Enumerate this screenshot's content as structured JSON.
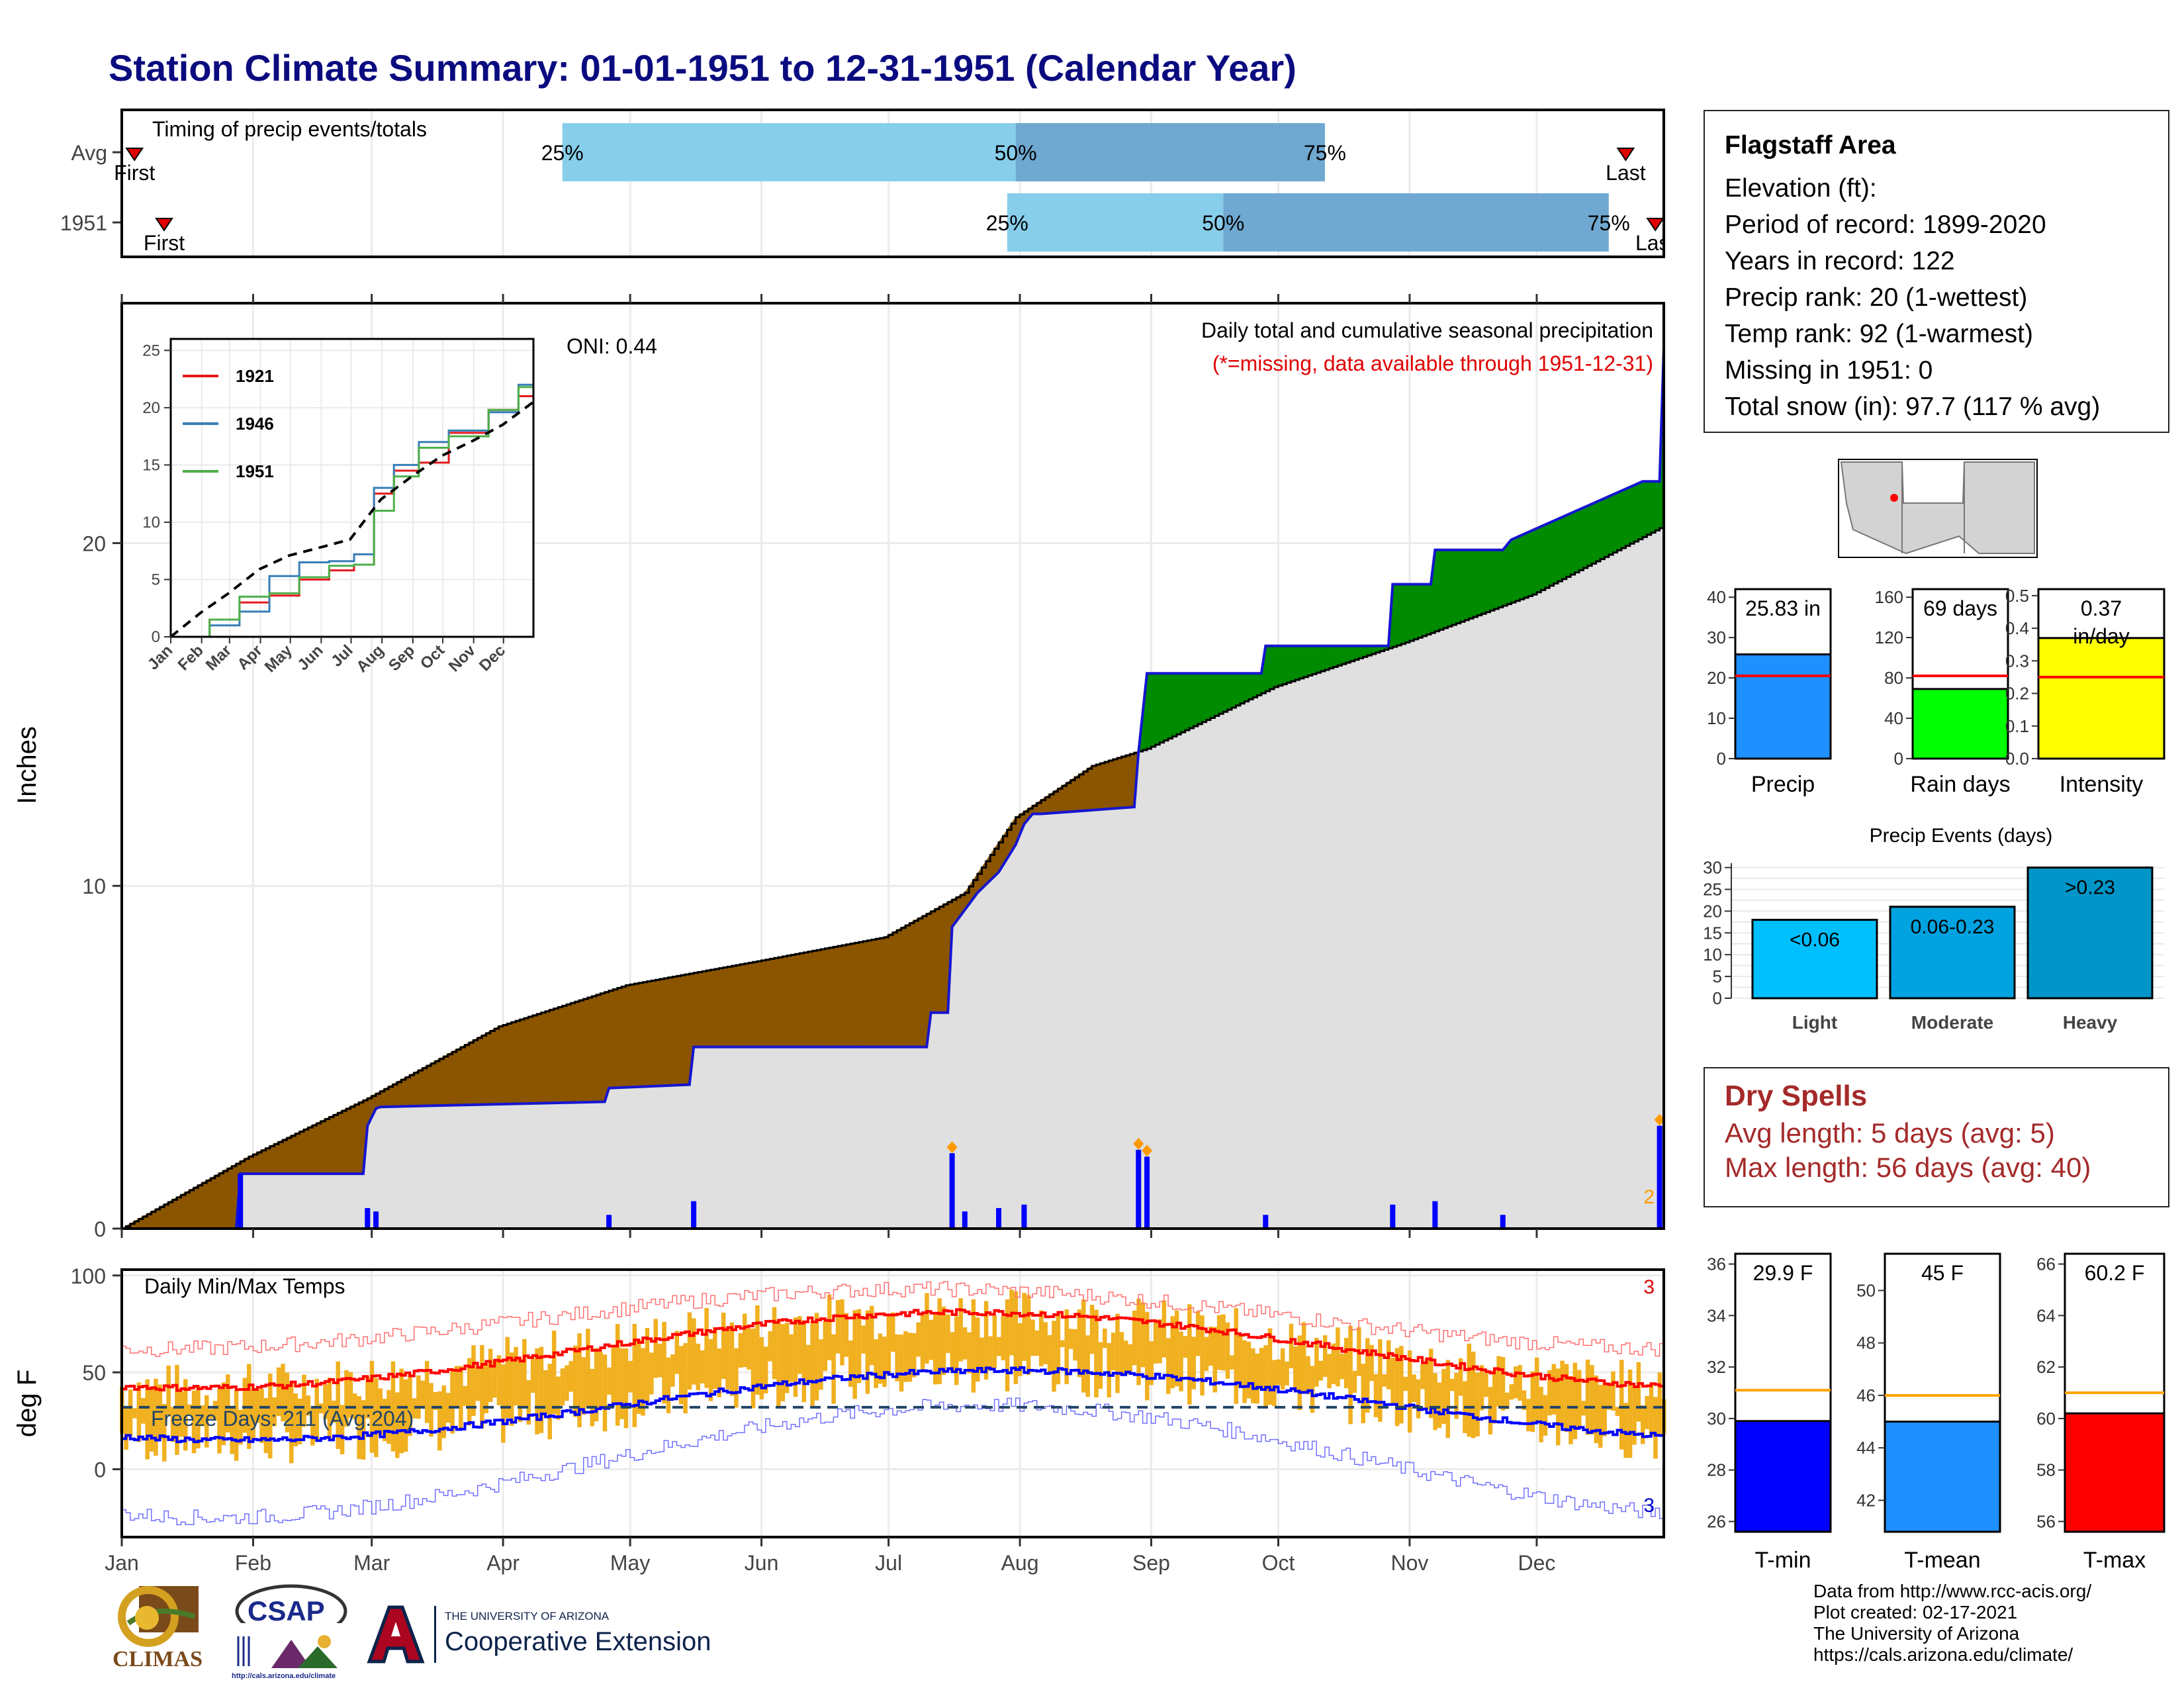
{
  "header": {
    "title": "Station Climate Summary: 01-01-1951 to 12-31-1951 (Calendar Year)"
  },
  "station": {
    "name": "Flagstaff Area",
    "elevation": "Elevation (ft):",
    "period": "Period of record: 1899-2020",
    "years": "Years in record: 122",
    "precip_rank": "Precip rank: 20 (1-wettest)",
    "temp_rank": "Temp rank: 92 (1-warmest)",
    "missing": "Missing in 1951: 0",
    "snow": "Total snow (in): 97.7 (117 % avg)"
  },
  "dry_spells": {
    "title": "Dry Spells",
    "avg": "Avg length: 5 days (avg: 5)",
    "max": "Max length: 56 days (avg: 40)"
  },
  "credits": {
    "line1": "Data from http://www.rcc-acis.org/",
    "line2": "Plot created: 02-17-2021",
    "line3": "The University of Arizona",
    "line4": "https://cals.arizona.edu/climate/"
  },
  "logos": {
    "climas": "CLIMAS",
    "csap": "CSAP",
    "csap_url": "http://cals.arizona.edu/climate",
    "ua_small": "THE UNIVERSITY OF ARIZONA",
    "ua_big": "Cooperative Extension"
  },
  "colors": {
    "dry_brown": "#8b5500",
    "wet_green": "#008b00",
    "cum_line": "#1515d0",
    "avg_fill": "#e0e0e0",
    "quart_light": "#87ceeb",
    "quart_dark": "#6fa8d0",
    "temp_bar": "#f0b020",
    "tmax": "#ff0000",
    "tmin": "#0000ff"
  },
  "chart_data": [
    {
      "id": "timing",
      "type": "bar",
      "title": "Timing of precip events/totals",
      "rows": [
        {
          "label": "Avg",
          "first": 4,
          "q25": 105,
          "q50": 212,
          "q75": 285,
          "last": 356,
          "first_label": "First",
          "last_label": "Last"
        },
        {
          "label": "1951",
          "first": 11,
          "q25": 210,
          "q50": 261,
          "q75": 352,
          "last": 363,
          "first_label": "First",
          "last_label": "Last"
        }
      ],
      "quartile_labels": [
        "25%",
        "50%",
        "75%"
      ],
      "xlim": [
        1,
        365
      ]
    },
    {
      "id": "cumulative-precip",
      "type": "area",
      "title": "Daily total and cumulative seasonal precipitation",
      "subtitle": "(*=missing, data available through 1951-12-31)",
      "annotation": "ONI: 0.44",
      "ylabel": "Inches",
      "ylim": [
        0,
        27
      ],
      "yticks": [
        0,
        10,
        20
      ],
      "xlim": [
        1,
        365
      ],
      "avg_cumulative": {
        "x": [
          1,
          31,
          59,
          90,
          120,
          151,
          181,
          200,
          212,
          230,
          243,
          273,
          304,
          334,
          365
        ],
        "y": [
          0,
          2.1,
          3.8,
          5.9,
          7.1,
          7.8,
          8.5,
          9.8,
          12.0,
          13.5,
          14.0,
          15.8,
          17.1,
          18.5,
          20.5
        ]
      },
      "obs_cumulative": {
        "x": [
          1,
          28,
          29,
          58,
          59,
          61,
          62,
          115,
          116,
          135,
          136,
          191,
          192,
          196,
          197,
          200,
          203,
          208,
          212,
          214,
          216,
          218,
          240,
          241,
          243,
          270,
          271,
          300,
          301,
          310,
          311,
          327,
          329,
          360,
          364,
          365
        ],
        "y": [
          0,
          0,
          1.6,
          1.6,
          3.0,
          3.5,
          3.55,
          3.7,
          4.1,
          4.2,
          5.3,
          5.3,
          6.3,
          6.3,
          8.8,
          9.3,
          9.8,
          10.4,
          11.2,
          11.8,
          12.1,
          12.1,
          12.3,
          13.9,
          16.2,
          16.2,
          17.0,
          17.0,
          18.8,
          18.8,
          19.8,
          19.8,
          20.1,
          21.8,
          21.8,
          25.7
        ]
      },
      "daily_marks": [
        {
          "day": 29,
          "value": 1.6
        },
        {
          "day": 59,
          "value": 0.6
        },
        {
          "day": 61,
          "value": 0.5
        },
        {
          "day": 116,
          "value": 0.4
        },
        {
          "day": 136,
          "value": 0.8
        },
        {
          "day": 197,
          "value": 2.2
        },
        {
          "day": 200,
          "value": 0.5
        },
        {
          "day": 208,
          "value": 0.6
        },
        {
          "day": 214,
          "value": 0.7
        },
        {
          "day": 241,
          "value": 2.3
        },
        {
          "day": 243,
          "value": 2.1
        },
        {
          "day": 271,
          "value": 0.4
        },
        {
          "day": 301,
          "value": 0.7
        },
        {
          "day": 311,
          "value": 0.8
        },
        {
          "day": 327,
          "value": 0.4
        },
        {
          "day": 364,
          "value": 3.0
        }
      ],
      "count_label": "2"
    },
    {
      "id": "inset-years",
      "type": "line",
      "ylim": [
        0,
        26
      ],
      "yticks": [
        0,
        5,
        10,
        15,
        20,
        25
      ],
      "months": [
        "Jan",
        "Feb",
        "Mar",
        "Apr",
        "May",
        "Jun",
        "Jul",
        "Aug",
        "Sep",
        "Oct",
        "Nov",
        "Dec"
      ],
      "series": [
        {
          "name": "1921",
          "color": "#e41a1c",
          "x": [
            1,
            40,
            70,
            100,
            130,
            160,
            185,
            205,
            225,
            250,
            280,
            320,
            350,
            365
          ],
          "y": [
            0,
            1.5,
            3.0,
            3.6,
            5.0,
            5.8,
            6.3,
            12.5,
            14.5,
            15.2,
            17.8,
            19.8,
            21.0,
            24.5
          ]
        },
        {
          "name": "1946",
          "color": "#377eb8",
          "x": [
            1,
            40,
            70,
            100,
            130,
            160,
            185,
            205,
            225,
            250,
            280,
            320,
            350,
            365
          ],
          "y": [
            0,
            1.0,
            2.2,
            5.3,
            6.5,
            6.6,
            7.2,
            13.0,
            15.0,
            17.0,
            18.0,
            19.6,
            22.0,
            25.5
          ]
        },
        {
          "name": "1951",
          "color": "#4daf4a",
          "x": [
            1,
            40,
            70,
            100,
            130,
            160,
            185,
            205,
            225,
            250,
            280,
            320,
            350,
            365
          ],
          "y": [
            0,
            1.5,
            3.5,
            3.8,
            5.2,
            6.2,
            6.3,
            11.0,
            14.0,
            16.5,
            17.5,
            19.8,
            21.8,
            25.7
          ]
        },
        {
          "name": "",
          "color": "#000000",
          "dash": true,
          "x": [
            1,
            31,
            59,
            90,
            120,
            151,
            181,
            212,
            243,
            273,
            304,
            334,
            365
          ],
          "y": [
            0,
            2.1,
            3.8,
            5.9,
            7.1,
            7.8,
            8.5,
            12.0,
            14.0,
            15.8,
            17.1,
            18.5,
            20.5
          ]
        }
      ]
    },
    {
      "id": "temps",
      "type": "line",
      "title": "Daily Min/Max Temps",
      "annotation": "Freeze Days: 211 (Avg:204)",
      "ylabel": "deg F",
      "ylim": [
        -35,
        103
      ],
      "yticks": [
        0,
        50,
        100
      ],
      "freeze_line": 32,
      "count_top": "3",
      "count_bottom": "3",
      "months": [
        "Jan",
        "Feb",
        "Mar",
        "Apr",
        "May",
        "Jun",
        "Jul",
        "Aug",
        "Sep",
        "Oct",
        "Nov",
        "Dec"
      ],
      "month_starts": [
        1,
        32,
        60,
        91,
        121,
        152,
        182,
        213,
        244,
        274,
        305,
        335
      ],
      "avg_max": {
        "min": 42,
        "max": 81,
        "peak_day": 200
      },
      "avg_min": {
        "min": 15,
        "max": 51,
        "peak_day": 210
      },
      "rec_max": {
        "min": 62,
        "max": 93,
        "peak_day": 190
      },
      "rec_min": {
        "min": -25,
        "max": 33,
        "peak_day": 205
      }
    },
    {
      "id": "stat-precip",
      "type": "bar",
      "categories": [
        "Precip"
      ],
      "values": [
        25.83
      ],
      "label": "25.83 in",
      "avg": 20.5,
      "ylim": [
        0,
        42
      ],
      "yticks": [
        0,
        10,
        20,
        30,
        40
      ],
      "color": "#1e90ff"
    },
    {
      "id": "stat-raindays",
      "type": "bar",
      "categories": [
        "Rain days"
      ],
      "values": [
        69
      ],
      "label": "69 days",
      "avg": 82,
      "ylim": [
        0,
        168
      ],
      "yticks": [
        0,
        40,
        80,
        120,
        160
      ],
      "color": "#00ff00"
    },
    {
      "id": "stat-intensity",
      "type": "bar",
      "categories": [
        "Intensity"
      ],
      "values": [
        0.37
      ],
      "label": "0.37",
      "label2": "in/day",
      "avg": 0.25,
      "ylim": [
        0,
        0.52
      ],
      "yticks": [
        0.0,
        0.1,
        0.2,
        0.3,
        0.4,
        0.5
      ],
      "color": "#ffff00"
    },
    {
      "id": "precip-events",
      "type": "bar",
      "title": "Precip Events (days)",
      "categories": [
        "Light",
        "Moderate",
        "Heavy"
      ],
      "values": [
        18,
        21,
        30
      ],
      "bar_labels": [
        "<0.06",
        "0.06-0.23",
        ">0.23"
      ],
      "ylim": [
        0,
        31
      ],
      "yticks": [
        0,
        5,
        10,
        15,
        20,
        25,
        30
      ],
      "colors": [
        "#00bfff",
        "#00a2e0",
        "#0095c8"
      ]
    },
    {
      "id": "stat-tmin",
      "type": "bar",
      "categories": [
        "T-min"
      ],
      "values": [
        29.9
      ],
      "label": "29.9 F",
      "avg": 31.1,
      "ylim": [
        25.6,
        36.4
      ],
      "yticks": [
        26,
        28,
        30,
        32,
        34,
        36
      ],
      "color": "#0000ff"
    },
    {
      "id": "stat-tmean",
      "type": "bar",
      "categories": [
        "T-mean"
      ],
      "values": [
        45
      ],
      "label": "45 F",
      "avg": 46.0,
      "ylim": [
        40.8,
        51.4
      ],
      "yticks": [
        42,
        44,
        46,
        48,
        50
      ],
      "color": "#1e90ff"
    },
    {
      "id": "stat-tmax",
      "type": "bar",
      "categories": [
        "T-max"
      ],
      "values": [
        60.2
      ],
      "label": "60.2 F",
      "avg": 61.0,
      "ylim": [
        55.6,
        66.4
      ],
      "yticks": [
        56,
        58,
        60,
        62,
        64,
        66
      ],
      "color": "#ff0000"
    }
  ]
}
